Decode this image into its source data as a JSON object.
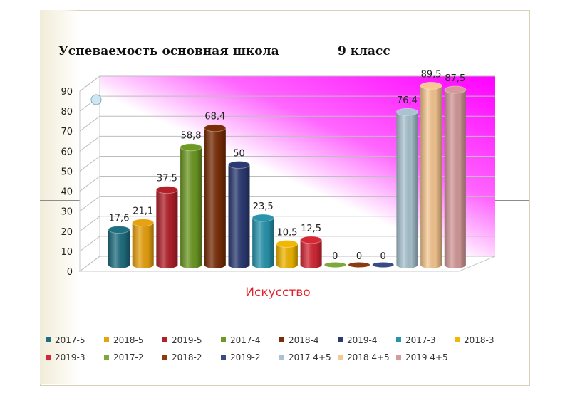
{
  "slide": {
    "title": "Успеваемость основная школа",
    "title_right": "9 класс"
  },
  "chart_data": {
    "type": "bar",
    "xlabel": "Искусство",
    "ylim": [
      0,
      90
    ],
    "yticks": [
      "0",
      "10",
      "20",
      "30",
      "40",
      "50",
      "60",
      "70",
      "80",
      "90"
    ],
    "grid": true,
    "legend_position": "bottom",
    "categories": [
      "Искусство"
    ],
    "series": [
      {
        "name": "2017-5",
        "value": 17.6,
        "label": "17,6",
        "color": "#1f6f80"
      },
      {
        "name": "2018-5",
        "value": 21.1,
        "label": "21,1",
        "color": "#e9a20f"
      },
      {
        "name": "2019-5",
        "value": 37.5,
        "label": "37,5",
        "color": "#b3202a"
      },
      {
        "name": "2017-4",
        "value": 58.8,
        "label": "58,8",
        "color": "#6e9a24"
      },
      {
        "name": "2018-4",
        "value": 68.4,
        "label": "68,4",
        "color": "#7a2e08"
      },
      {
        "name": "2019-4",
        "value": 50,
        "label": "50",
        "color": "#2b3a73"
      },
      {
        "name": "2017-3",
        "value": 23.5,
        "label": "23,5",
        "color": "#2895ad"
      },
      {
        "name": "2018-3",
        "value": 10.5,
        "label": "10,5",
        "color": "#f2b700"
      },
      {
        "name": "2019-3",
        "value": 12.5,
        "label": "12,5",
        "color": "#d42835"
      },
      {
        "name": "2017-2",
        "value": 0,
        "label": "0",
        "color": "#7fa83a"
      },
      {
        "name": "2018-2",
        "value": 0,
        "label": "0",
        "color": "#8c3a10"
      },
      {
        "name": "2019-2",
        "value": 0,
        "label": "0",
        "color": "#3a4a86"
      },
      {
        "name": "2017 4+5",
        "value": 76.4,
        "label": "76,4",
        "color": "#a9c4d0"
      },
      {
        "name": "2018 4+5",
        "value": 89.5,
        "label": "89,5",
        "color": "#f8c892"
      },
      {
        "name": "2019 4+5",
        "value": 87.5,
        "label": "87,5",
        "color": "#d59a9a"
      }
    ]
  }
}
